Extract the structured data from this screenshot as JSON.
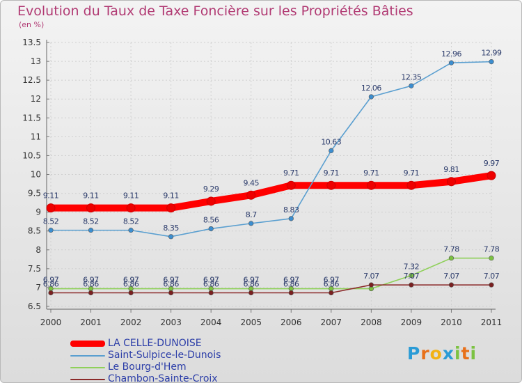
{
  "title": "Evolution du Taux de Taxe Foncière sur les Propriétés Bâties",
  "unit": "(en %)",
  "brand": {
    "letters": [
      "P",
      "r",
      "o",
      "x",
      "i",
      "t",
      "i"
    ],
    "colors": [
      "#2a9bd6",
      "#e8701a",
      "#f2b213",
      "#2a9bd6",
      "#7cc242",
      "#e8701a",
      "#7cc242"
    ]
  },
  "chart_data": {
    "type": "line",
    "title": "Evolution du Taux de Taxe Foncière sur les Propriétés Bâties",
    "ylabel": "(en %)",
    "x": [
      "2000",
      "2001",
      "2002",
      "2003",
      "2004",
      "2005",
      "2006",
      "2007",
      "2008",
      "2009",
      "2010",
      "2011"
    ],
    "ylim": [
      6.5,
      13.5
    ],
    "yticks": [
      "6.5",
      "7",
      "7.5",
      "8",
      "8.5",
      "9",
      "9.5",
      "10",
      "10.5",
      "11",
      "11.5",
      "12",
      "12.5",
      "13",
      "13.5"
    ],
    "grid": true,
    "legend_position": "bottom-left",
    "series": [
      {
        "name": "LA CELLE-DUNOISE",
        "color": "#ff0000",
        "emphasis": true,
        "values": [
          9.11,
          9.11,
          9.11,
          9.11,
          9.29,
          9.45,
          9.71,
          9.71,
          9.71,
          9.71,
          9.81,
          9.97
        ],
        "labels": [
          "9.11",
          "9.11",
          "9.11",
          "9.11",
          "9.29",
          "9.45",
          "9.71",
          "9.71",
          "9.71",
          "9.71",
          "9.81",
          "9.97"
        ]
      },
      {
        "name": "Saint-Sulpice-le-Dunois",
        "color": "#5a9fd0",
        "marker": "#3c8ed0",
        "values": [
          8.52,
          8.52,
          8.52,
          8.35,
          8.56,
          8.7,
          8.83,
          10.63,
          12.06,
          12.35,
          12.96,
          12.99
        ],
        "labels": [
          "8.52",
          "8.52",
          "8.52",
          "8.35",
          "8.56",
          "8.7",
          "8.83",
          "10.63",
          "12.06",
          "12.35",
          "12.96",
          "12.99"
        ]
      },
      {
        "name": "Le Bourg-d'Hem",
        "color": "#8fd05a",
        "marker": "#7cc242",
        "values": [
          6.97,
          6.97,
          6.97,
          6.97,
          6.97,
          6.97,
          6.97,
          6.97,
          6.97,
          7.32,
          7.78,
          7.78
        ],
        "labels": [
          "6.97",
          "6.97",
          "6.97",
          "6.97",
          "6.97",
          "6.97",
          "6.97",
          "6.97",
          "",
          "7.32",
          "7.78",
          "7.78"
        ]
      },
      {
        "name": "Chambon-Sainte-Croix",
        "color": "#8b2a2a",
        "marker": "#7a2020",
        "values": [
          6.86,
          6.86,
          6.86,
          6.86,
          6.86,
          6.86,
          6.86,
          6.86,
          7.07,
          7.07,
          7.07,
          7.07
        ],
        "labels": [
          "6.86",
          "6.86",
          "6.86",
          "6.86",
          "6.86",
          "6.86",
          "6.86",
          "6.86",
          "7.07",
          "7.07",
          "7.07",
          "7.07"
        ]
      }
    ]
  }
}
